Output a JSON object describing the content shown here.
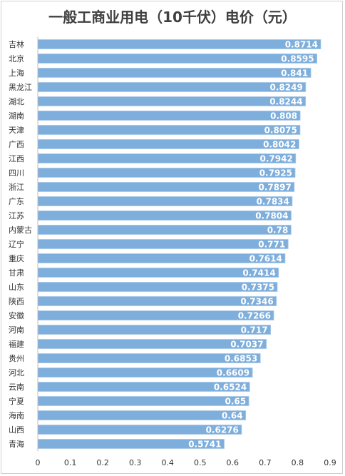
{
  "chart_data": {
    "type": "bar",
    "orientation": "horizontal",
    "title": "一般工商业用电（10千伏）电价（元）",
    "categories": [
      "吉林",
      "北京",
      "上海",
      "黑龙江",
      "湖北",
      "湖南",
      "天津",
      "广西",
      "江西",
      "四川",
      "浙江",
      "广东",
      "江苏",
      "内蒙古",
      "辽宁",
      "重庆",
      "甘肃",
      "山东",
      "陕西",
      "安徽",
      "河南",
      "福建",
      "贵州",
      "河北",
      "云南",
      "宁夏",
      "海南",
      "山西",
      "青海"
    ],
    "values": [
      0.8714,
      0.8595,
      0.841,
      0.8249,
      0.8244,
      0.808,
      0.8075,
      0.8042,
      0.7942,
      0.7925,
      0.7897,
      0.7834,
      0.7804,
      0.78,
      0.771,
      0.7614,
      0.7414,
      0.7375,
      0.7346,
      0.7266,
      0.717,
      0.7037,
      0.6853,
      0.6609,
      0.6524,
      0.65,
      0.64,
      0.6276,
      0.5741
    ],
    "value_labels": [
      "0.8714",
      "0.8595",
      "0.841",
      "0.8249",
      "0.8244",
      "0.808",
      "0.8075",
      "0.8042",
      "0.7942",
      "0.7925",
      "0.7897",
      "0.7834",
      "0.7804",
      "0.78",
      "0.771",
      "0.7614",
      "0.7414",
      "0.7375",
      "0.7346",
      "0.7266",
      "0.717",
      "0.7037",
      "0.6853",
      "0.6609",
      "0.6524",
      "0.65",
      "0.64",
      "0.6276",
      "0.5741"
    ],
    "xlim": [
      0,
      0.9
    ],
    "xticks": [
      "0",
      "0.1",
      "0.2",
      "0.3",
      "0.4",
      "0.5",
      "0.6",
      "0.7",
      "0.8",
      "0.9"
    ],
    "xlabel": "",
    "ylabel": "",
    "grid": false,
    "legend": "none",
    "bar_color": "#7eaedc",
    "bar_edge_color": "#a8c8e8"
  }
}
